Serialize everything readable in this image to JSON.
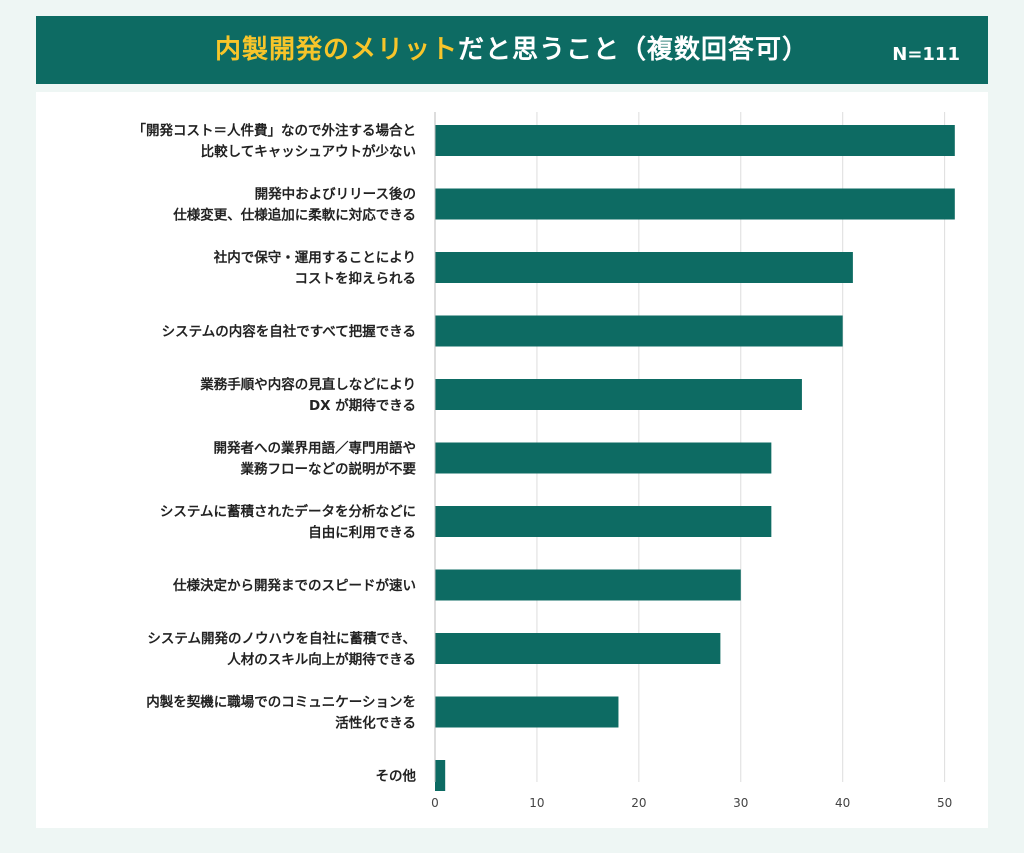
{
  "chart_data": {
    "type": "bar",
    "orientation": "horizontal",
    "title_highlight": "内製開発のメリット",
    "title_rest": "だと思うこと（複数回答可）",
    "sample_size": "N=111",
    "categories": [
      [
        "「開発コスト＝人件費」なので外注する場合と",
        "比較してキャッシュアウトが少ない"
      ],
      [
        "開発中およびリリース後の",
        "仕様変更、仕様追加に柔軟に対応できる"
      ],
      [
        "社内で保守・運用することにより",
        "コストを抑えられる"
      ],
      [
        "システムの内容を自社ですべて把握できる"
      ],
      [
        "業務手順や内容の見直しなどにより",
        "DX が期待できる"
      ],
      [
        "開発者への業界用語／専門用語や",
        "業務フローなどの説明が不要"
      ],
      [
        "システムに蓄積されたデータを分析などに",
        "自由に利用できる"
      ],
      [
        "仕様決定から開発までのスピードが速い"
      ],
      [
        "システム開発のノウハウを自社に蓄積でき、",
        "人材のスキル向上が期待できる"
      ],
      [
        "内製を契機に職場でのコミュニケーションを",
        "活性化できる"
      ],
      [
        "その他"
      ]
    ],
    "values": [
      51,
      51,
      41,
      40,
      36,
      33,
      33,
      30,
      28,
      18,
      1
    ],
    "xlim": [
      0,
      52
    ],
    "xticks": [
      0,
      10,
      20,
      30,
      40,
      50
    ],
    "grid": true,
    "colors": {
      "bar": "#0d6b63",
      "header": "#0d6b63",
      "highlight": "#f7c52a",
      "grid": "#dddddd",
      "background": "#eef6f4"
    }
  }
}
